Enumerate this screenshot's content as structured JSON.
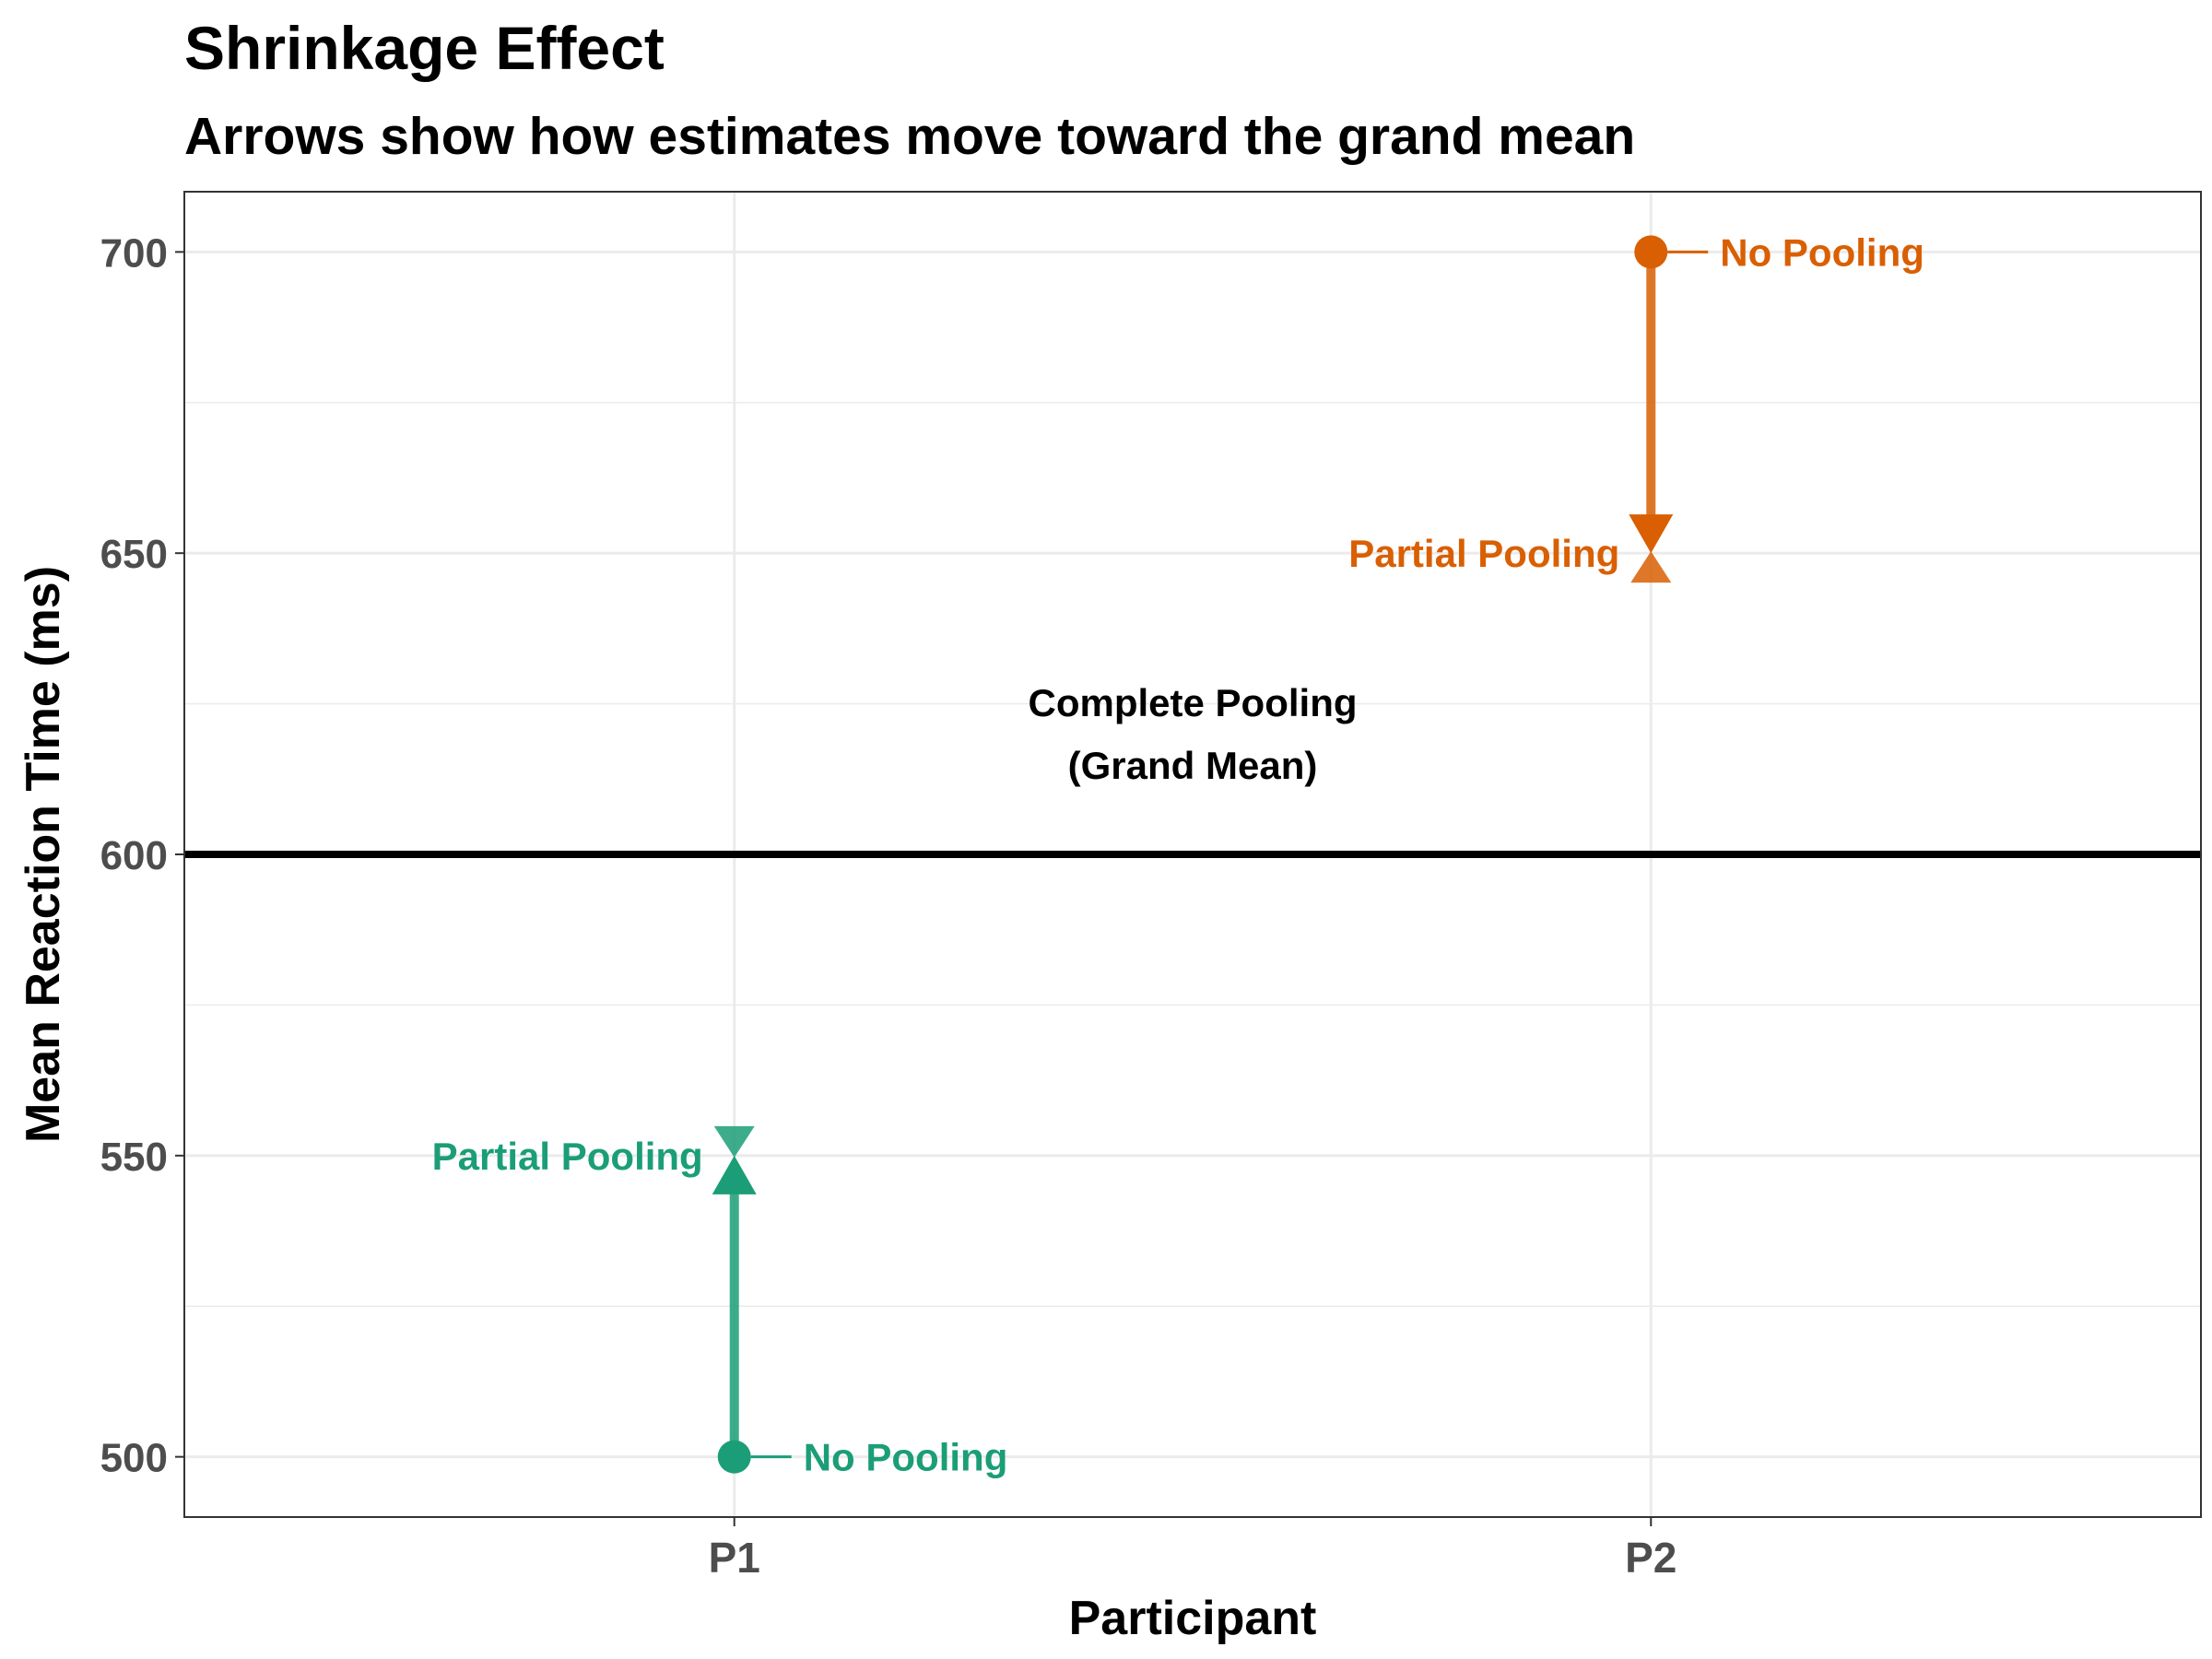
{
  "chart_data": {
    "type": "line",
    "title": "Shrinkage Effect",
    "subtitle": "Arrows show how estimates move toward the grand mean",
    "xlabel": "Participant",
    "ylabel": "Mean Reaction Time (ms)",
    "categories": [
      "P1",
      "P2"
    ],
    "ylim": [
      490,
      710
    ],
    "yticks": [
      "500",
      "550",
      "600",
      "650",
      "700"
    ],
    "ytick_values": [
      500,
      550,
      600,
      650,
      700
    ],
    "grid": true,
    "grand_mean": {
      "value": 600,
      "label_line1": "Complete Pooling",
      "label_line2": "(Grand Mean)"
    },
    "series": [
      {
        "participant": "P1",
        "color": "#1b9e77",
        "no_pooling": 500,
        "partial_pooling": 550,
        "no_pooling_label": "No Pooling",
        "partial_pooling_label": "Partial Pooling"
      },
      {
        "participant": "P2",
        "color": "#d95f02",
        "no_pooling": 700,
        "partial_pooling": 650,
        "no_pooling_label": "No Pooling",
        "partial_pooling_label": "Partial Pooling"
      }
    ]
  }
}
